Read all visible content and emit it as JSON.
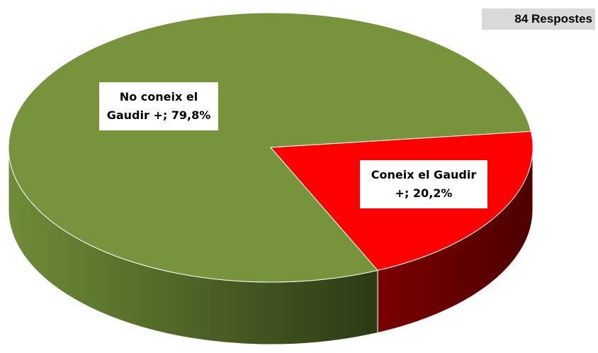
{
  "chart_data": {
    "type": "pie",
    "annotation": "84 Respostes",
    "values": [
      79.8,
      20.2
    ],
    "value_labels": [
      "No coneix el Gaudir +; 79,8%",
      "Coneix el Gaudir +; 20,2%"
    ],
    "colors": [
      "#77933c",
      "#ff0000"
    ]
  }
}
